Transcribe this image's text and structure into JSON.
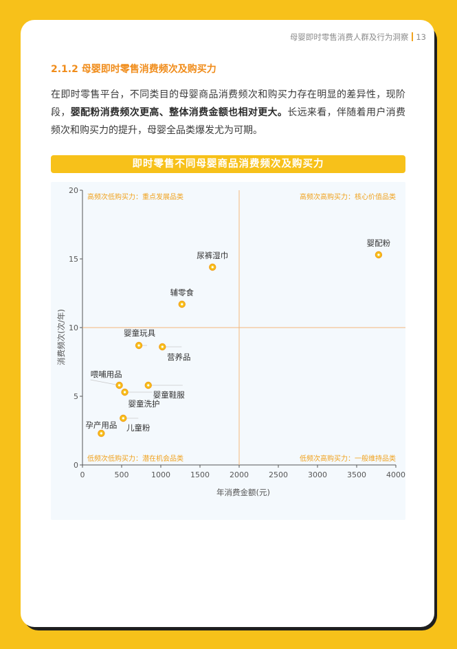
{
  "header": {
    "report_title": "母婴即时零售消费人群及行为洞察",
    "page_number": "13"
  },
  "section": {
    "number": "2.1.2",
    "title": "母婴即时零售消费频次及购买力"
  },
  "paragraph": {
    "part1": "在即时零售平台，不同类目的母婴商品消费频次和购买力存在明显的差异性，现阶段，",
    "bold": "婴配粉消费频次更高、整体消费金额也相对更大。",
    "part2": "长远来看，伴随着用户消费频次和购买力的提升，母婴全品类爆发尤为可期。"
  },
  "chart_banner": "即时零售不同母婴商品消费频次及购买力",
  "chart_data": {
    "type": "scatter",
    "title": "即时零售不同母婴商品消费频次及购买力",
    "xlabel": "年消费金额(元)",
    "ylabel": "消费频次(次/年)",
    "xlim": [
      0,
      4000
    ],
    "ylim": [
      0,
      20
    ],
    "x_ticks": [
      "0",
      "500",
      "1000",
      "1500",
      "2000",
      "2500",
      "3000",
      "3500",
      "4000"
    ],
    "y_ticks": [
      "0",
      "5",
      "10",
      "15",
      "20"
    ],
    "x_tick_values": [
      0,
      500,
      1000,
      1500,
      2000,
      2500,
      3000,
      3500,
      4000
    ],
    "y_tick_values": [
      0,
      5,
      10,
      15,
      20
    ],
    "divider_x": 2000,
    "divider_y": 10,
    "grid": false,
    "quadrant_labels": {
      "top_left": "高频次低购买力：重点发展品类",
      "top_right": "高频次高购买力：核心价值品类",
      "bottom_left": "低频次低购买力：潜在机会品类",
      "bottom_right": "低频次高购买力：一般维持品类"
    },
    "points": [
      {
        "label": "婴配粉",
        "x": 3780,
        "y": 15.3
      },
      {
        "label": "尿裤湿巾",
        "x": 1660,
        "y": 14.4
      },
      {
        "label": "辅零食",
        "x": 1270,
        "y": 11.7
      },
      {
        "label": "婴童玩具",
        "x": 720,
        "y": 8.7
      },
      {
        "label": "营养品",
        "x": 1020,
        "y": 8.6
      },
      {
        "label": "喂哺用品",
        "x": 470,
        "y": 5.8
      },
      {
        "label": "婴童鞋服",
        "x": 840,
        "y": 5.8
      },
      {
        "label": "婴童洗护",
        "x": 540,
        "y": 5.3
      },
      {
        "label": "儿童粉",
        "x": 520,
        "y": 3.4
      },
      {
        "label": "孕产用品",
        "x": 240,
        "y": 2.3
      }
    ],
    "colors": {
      "marker": "#F7C11A",
      "marker_ring": "#F2A01E",
      "divider": "#F3B87A",
      "quadrant_label": "#F0A21E",
      "axis": "#555555"
    }
  }
}
